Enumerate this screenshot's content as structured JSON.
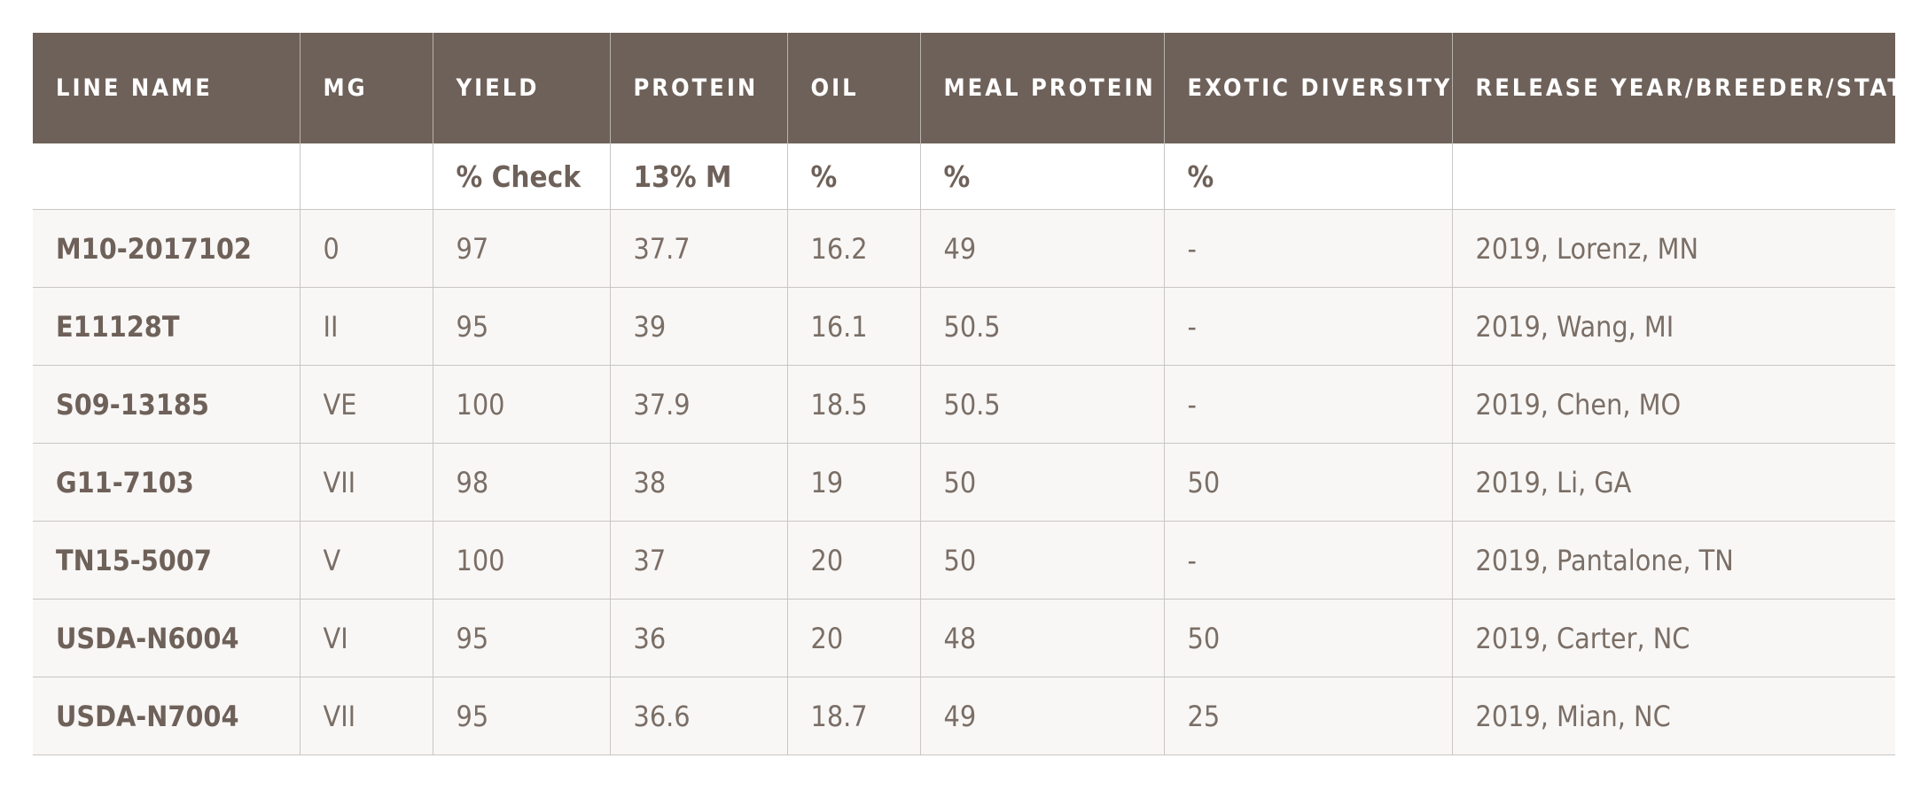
{
  "table": {
    "headers": [
      "LINE NAME",
      "MG",
      "YIELD",
      "PROTEIN",
      "OIL",
      "MEAL PROTEIN",
      "EXOTIC DIVERSITY",
      "RELEASE YEAR/BREEDER/STATE"
    ],
    "units": [
      "",
      "",
      "% Check",
      "13% M",
      "%",
      "%",
      "%",
      ""
    ],
    "rows": [
      [
        "M10-2017102",
        "0",
        "97",
        "37.7",
        "16.2",
        "49",
        "-",
        "2019, Lorenz, MN"
      ],
      [
        "E11128T",
        "II",
        "95",
        "39",
        "16.1",
        "50.5",
        "-",
        "2019, Wang, MI"
      ],
      [
        "S09-13185",
        "VE",
        "100",
        "37.9",
        "18.5",
        "50.5",
        "-",
        "2019, Chen, MO"
      ],
      [
        "G11-7103",
        "VII",
        "98",
        "38",
        "19",
        "50",
        "50",
        "2019, Li, GA"
      ],
      [
        "TN15-5007",
        "V",
        "100",
        "37",
        "20",
        "50",
        "-",
        "2019, Pantalone, TN"
      ],
      [
        "USDA-N6004",
        "VI",
        "95",
        "36",
        "20",
        "48",
        "50",
        "2019, Carter, NC"
      ],
      [
        "USDA-N7004",
        "VII",
        "95",
        "36.6",
        "18.7",
        "49",
        "25",
        "2019, Mian, NC"
      ]
    ]
  },
  "colors": {
    "header_bg": "#6e6159",
    "header_text": "#ffffff",
    "row_bg": "#f8f7f5",
    "text": "#6e6159"
  }
}
